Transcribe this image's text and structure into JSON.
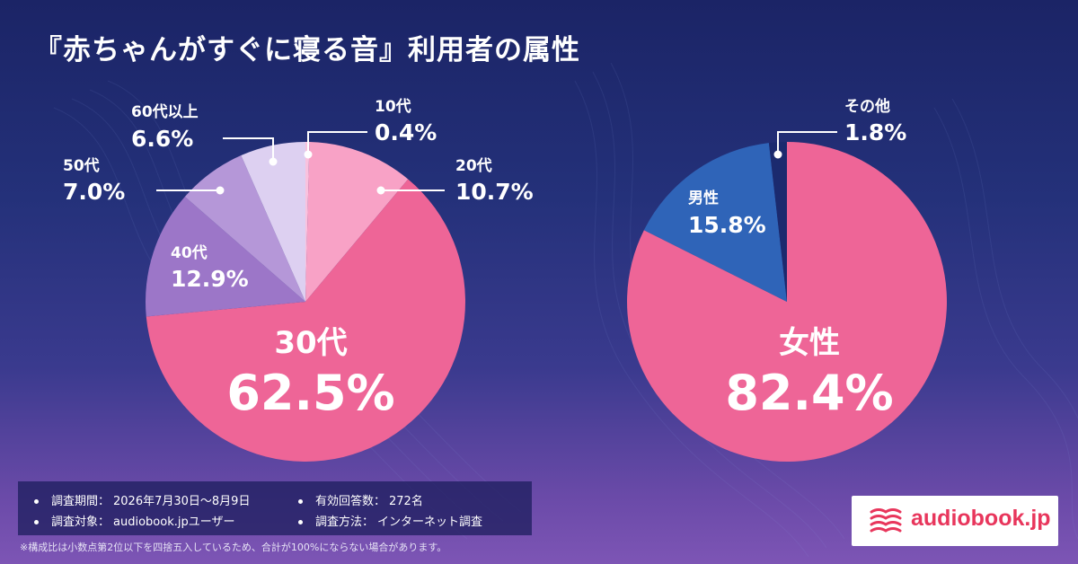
{
  "title": "『赤ちゃんがすぐに寝る音』利用者の属性",
  "chart_data": [
    {
      "type": "pie",
      "name": "age",
      "categories": [
        "10代",
        "20代",
        "30代",
        "40代",
        "50代",
        "60代以上"
      ],
      "values": [
        0.4,
        10.7,
        62.5,
        12.9,
        7.0,
        6.6
      ],
      "labels": [
        "0.4%",
        "10.7%",
        "62.5%",
        "12.9%",
        "7.0%",
        "6.6%"
      ],
      "colors": [
        "#f9c2de",
        "#f8a2c6",
        "#ee6597",
        "#9c76c8",
        "#b597d8",
        "#ddd0f1"
      ],
      "start_angle_deg": 0,
      "direction": "clockwise"
    },
    {
      "type": "pie",
      "name": "gender",
      "categories": [
        "女性",
        "男性",
        "その他"
      ],
      "values": [
        82.4,
        15.8,
        1.8
      ],
      "labels": [
        "82.4%",
        "15.8%",
        "1.8%"
      ],
      "colors": [
        "#ee6597",
        "#2f64b8",
        "#1b2a6e"
      ],
      "start_angle_deg": 0,
      "direction": "clockwise"
    }
  ],
  "survey": {
    "period_label": "調査期間：",
    "period_value": "2026年7月30日〜8月9日",
    "responses_label": "有効回答数：",
    "responses_value": "272名",
    "target_label": "調査対象：",
    "target_value": "audiobook.jpユーザー",
    "method_label": "調査方法：",
    "method_value": "インターネット調査"
  },
  "footnote": "※構成比は小数点第2位以下を四捨五入しているため、合計が100%にならない場合があります。",
  "logo": {
    "text": "audiobook.jp",
    "color": "#e8365c"
  }
}
